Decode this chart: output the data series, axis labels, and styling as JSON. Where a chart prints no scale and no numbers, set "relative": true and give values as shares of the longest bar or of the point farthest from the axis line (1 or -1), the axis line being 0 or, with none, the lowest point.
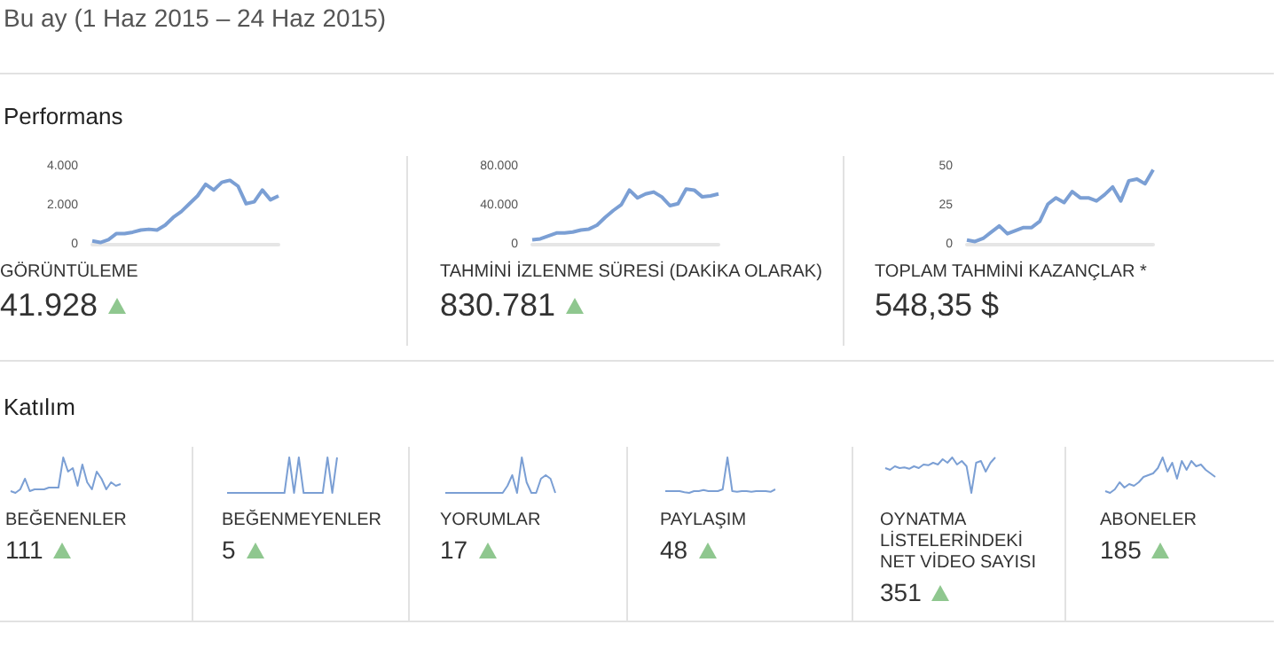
{
  "chart_data": [
    {
      "type": "other",
      "title": "Bu ay (1 Haz 2015 – 24 Haz 2015)",
      "annotations": [
        "Performans",
        "Katılım"
      ]
    },
    {
      "type": "line",
      "title": "GÖRÜNTÜLEME",
      "subtitle": "41.928",
      "color": "#7b9fd4",
      "categories": [
        null,
        null,
        null,
        null,
        null,
        null,
        null,
        null,
        null,
        null,
        null,
        null,
        null,
        null,
        null,
        null,
        null,
        null,
        null,
        null,
        null,
        null,
        null,
        null
      ],
      "values": [
        190,
        110,
        260,
        570,
        570,
        640,
        750,
        790,
        750,
        1000,
        1400,
        1700,
        2100,
        2500,
        3100,
        2800,
        3200,
        3300,
        3000,
        2100,
        2200,
        2800,
        2300,
        2500
      ],
      "ylim": [
        0,
        4000
      ],
      "yticks": [
        0,
        {
          "value": 2000,
          "label": "2.000"
        },
        {
          "value": 4000,
          "label": "4.000"
        }
      ]
    },
    {
      "type": "line",
      "title": "TAHMİNİ İZLENME SÜRESİ (DAKİKA OLARAK)",
      "subtitle": "830.781",
      "color": "#7b9fd4",
      "categories": [
        null,
        null,
        null,
        null,
        null,
        null,
        null,
        null,
        null,
        null,
        null,
        null,
        null,
        null,
        null,
        null,
        null,
        null,
        null,
        null,
        null,
        null,
        null,
        null
      ],
      "values": [
        5000,
        6000,
        9000,
        12000,
        12000,
        13000,
        15000,
        16000,
        20000,
        28000,
        35000,
        41000,
        56000,
        48000,
        52000,
        54000,
        49000,
        40000,
        42000,
        57000,
        56000,
        49000,
        50000,
        52000
      ],
      "ylim": [
        0,
        80000
      ],
      "yticks": [
        0,
        {
          "value": 40000,
          "label": "40.000"
        },
        {
          "value": 80000,
          "label": "80.000"
        }
      ]
    },
    {
      "type": "line",
      "title": "TOPLAM TAHMİNİ KAZANÇLAR *",
      "subtitle": "548,35 $",
      "color": "#7b9fd4",
      "categories": [
        null,
        null,
        null,
        null,
        null,
        null,
        null,
        null,
        null,
        null,
        null,
        null,
        null,
        null,
        null,
        null,
        null,
        null,
        null,
        null,
        null,
        null,
        null,
        null
      ],
      "values": [
        3,
        2,
        4,
        8,
        12,
        7,
        9,
        11,
        11,
        15,
        26,
        30,
        27,
        34,
        30,
        30,
        28,
        32,
        37,
        28,
        41,
        42,
        39,
        48
      ],
      "ylim": [
        0,
        50
      ],
      "yticks": [
        0,
        25,
        50
      ]
    },
    {
      "type": "line",
      "relative": true,
      "title": "BEĞENENLER",
      "subtitle": "111",
      "color": "#7b9fd4",
      "categories": [
        null,
        null,
        null,
        null,
        null,
        null,
        null,
        null,
        null,
        null,
        null,
        null,
        null,
        null,
        null,
        null,
        null,
        null,
        null,
        null,
        null,
        null,
        null,
        null
      ],
      "values": [
        0.05,
        0,
        0.1,
        0.4,
        0.05,
        0.1,
        0.1,
        0.1,
        0.15,
        0.15,
        0.15,
        1,
        0.6,
        0.7,
        0.2,
        0.8,
        0.3,
        0.1,
        0.6,
        0.4,
        0.1,
        0.3,
        0.2,
        0.25
      ]
    },
    {
      "type": "line",
      "relative": true,
      "title": "BEĞENMEYENLER",
      "subtitle": "5",
      "color": "#7b9fd4",
      "categories": [
        null,
        null,
        null,
        null,
        null,
        null,
        null,
        null,
        null,
        null,
        null,
        null,
        null,
        null,
        null,
        null,
        null,
        null,
        null,
        null,
        null,
        null,
        null,
        null
      ],
      "values": [
        0,
        0,
        0,
        0,
        0,
        0,
        0,
        0,
        0,
        0,
        0,
        0,
        0,
        1,
        0,
        1,
        0,
        0,
        0,
        0,
        0,
        1,
        0,
        1
      ]
    },
    {
      "type": "line",
      "relative": true,
      "title": "YORUMLAR",
      "subtitle": "17",
      "color": "#7b9fd4",
      "categories": [
        null,
        null,
        null,
        null,
        null,
        null,
        null,
        null,
        null,
        null,
        null,
        null,
        null,
        null,
        null,
        null,
        null,
        null,
        null,
        null,
        null,
        null,
        null,
        null
      ],
      "values": [
        0,
        0,
        0,
        0,
        0,
        0,
        0,
        0,
        0,
        0,
        0,
        0,
        0,
        0.2,
        0.5,
        0,
        1,
        0.3,
        0,
        0,
        0.4,
        0.5,
        0.4,
        0
      ]
    },
    {
      "type": "line",
      "relative": true,
      "title": "PAYLAŞIM",
      "subtitle": "48",
      "color": "#7b9fd4",
      "categories": [
        null,
        null,
        null,
        null,
        null,
        null,
        null,
        null,
        null,
        null,
        null,
        null,
        null,
        null,
        null,
        null,
        null,
        null,
        null,
        null,
        null,
        null,
        null,
        null
      ],
      "values": [
        0.05,
        0.05,
        0.05,
        0.05,
        0.02,
        0,
        0.05,
        0.05,
        0.08,
        0.05,
        0.05,
        0.05,
        0.1,
        1,
        0.05,
        0.03,
        0.05,
        0.05,
        0.03,
        0.05,
        0.05,
        0.05,
        0.03,
        0.1
      ]
    },
    {
      "type": "line",
      "relative": true,
      "title": "OYNATMA LİSTELERİNDEKİ NET VİDEO SAYISI",
      "subtitle": "351",
      "color": "#7b9fd4",
      "categories": [
        null,
        null,
        null,
        null,
        null,
        null,
        null,
        null,
        null,
        null,
        null,
        null,
        null,
        null,
        null,
        null,
        null,
        null,
        null,
        null,
        null,
        null,
        null,
        null
      ],
      "values": [
        0.7,
        0.65,
        0.75,
        0.7,
        0.72,
        0.68,
        0.75,
        0.7,
        0.8,
        0.78,
        0.85,
        0.8,
        0.95,
        0.85,
        1,
        0.8,
        0.9,
        0.75,
        0,
        0.85,
        0.9,
        0.6,
        0.85,
        1
      ]
    },
    {
      "type": "line",
      "relative": true,
      "title": "ABONELER",
      "subtitle": "185",
      "color": "#7b9fd4",
      "categories": [
        null,
        null,
        null,
        null,
        null,
        null,
        null,
        null,
        null,
        null,
        null,
        null,
        null,
        null,
        null,
        null,
        null,
        null,
        null,
        null,
        null,
        null,
        null,
        null
      ],
      "values": [
        0.05,
        0,
        0.1,
        0.3,
        0.15,
        0.25,
        0.2,
        0.3,
        0.45,
        0.5,
        0.55,
        0.7,
        1,
        0.6,
        0.85,
        0.4,
        0.9,
        0.65,
        0.9,
        0.75,
        0.8,
        0.65,
        0.55,
        0.45
      ]
    }
  ]
}
